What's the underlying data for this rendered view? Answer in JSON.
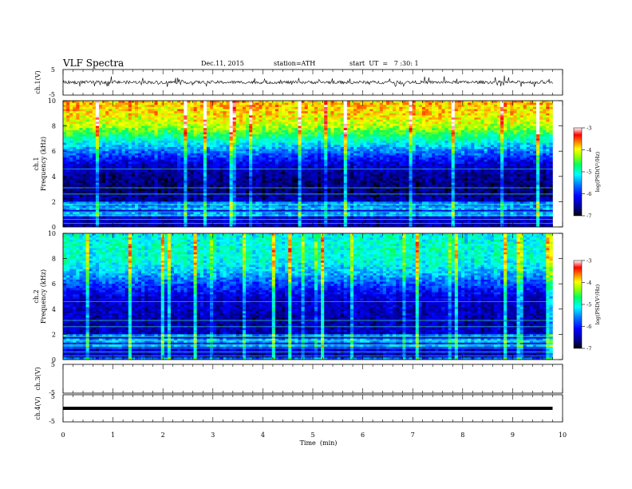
{
  "header": {
    "title": "VLF  Spectra",
    "date": "Dec.11, 2015",
    "station": "station=ATH",
    "start": "start  UT  =   7 :30: 1"
  },
  "chart_data": [
    {
      "type": "line",
      "panel": "ch1-waveform",
      "ylabel": "ch.1(V)",
      "ylim": [
        -5,
        5
      ],
      "yticks": [
        "5",
        "-5"
      ],
      "x_range_min": [
        0,
        10
      ],
      "baseline_V": 0,
      "description_series": "noisy waveform fluctuating around 0 V with spikes to about ±2 V"
    },
    {
      "type": "heatmap",
      "panel": "ch1-spectrogram",
      "ylabel": "ch.1\nFrequency  (kHz)",
      "ylabel_lines": [
        "ch.1",
        "Frequency  (kHz)"
      ],
      "ylim": [
        0,
        10
      ],
      "yticks": [
        "0",
        "2",
        "4",
        "6",
        "8",
        "10"
      ],
      "colorbar": {
        "label": "log(PSD(V²/Hz)",
        "range": [
          -7,
          -3
        ],
        "ticks": [
          "-3",
          "-4",
          "-5",
          "-6",
          "-7"
        ]
      },
      "profile_logPSD_by_kHz": [
        [
          0.0,
          -6.5
        ],
        [
          1.0,
          -6.3
        ],
        [
          2.0,
          -6.5
        ],
        [
          3.0,
          -6.7
        ],
        [
          4.0,
          -6.6
        ],
        [
          5.0,
          -6.3
        ],
        [
          6.0,
          -5.6
        ],
        [
          7.0,
          -4.9
        ],
        [
          8.0,
          -4.2
        ],
        [
          9.0,
          -3.9
        ],
        [
          10.0,
          -3.8
        ]
      ]
    },
    {
      "type": "heatmap",
      "panel": "ch2-spectrogram",
      "ylabel_lines": [
        "ch.2",
        "Frequency  (kHz)"
      ],
      "ylim": [
        0,
        10
      ],
      "yticks": [
        "0",
        "2",
        "4",
        "6",
        "8",
        "10"
      ],
      "colorbar": {
        "label": "log(PSD(V²/Hz)",
        "range": [
          -7,
          -3
        ],
        "ticks": [
          "-3",
          "-4",
          "-5",
          "-6",
          "-7"
        ]
      },
      "profile_logPSD_by_kHz": [
        [
          0.0,
          -6.6
        ],
        [
          1.0,
          -6.2
        ],
        [
          2.0,
          -6.4
        ],
        [
          3.0,
          -6.5
        ],
        [
          4.0,
          -6.4
        ],
        [
          5.0,
          -6.3
        ],
        [
          6.0,
          -5.8
        ],
        [
          7.0,
          -5.3
        ],
        [
          8.0,
          -5.0
        ],
        [
          9.0,
          -5.0
        ],
        [
          10.0,
          -5.1
        ]
      ]
    },
    {
      "type": "line",
      "panel": "ch3-waveform",
      "ylabel": "ch.3(V)",
      "ylim": [
        -5,
        5
      ],
      "yticks": [
        "5",
        "-5"
      ],
      "note": "no data"
    },
    {
      "type": "line",
      "panel": "ch4-waveform",
      "ylabel": "ch.4(V)",
      "ylim": [
        -5,
        5
      ],
      "yticks": [
        "5",
        "-5"
      ],
      "x": [
        0,
        9.8
      ],
      "values": [
        0,
        0
      ]
    }
  ],
  "xaxis": {
    "label": "Time  (min)",
    "range": [
      0,
      10
    ],
    "ticks": [
      "0",
      "1",
      "2",
      "3",
      "4",
      "5",
      "6",
      "7",
      "8",
      "9",
      "10"
    ],
    "data_end_min": 9.8
  },
  "colors": {
    "colormap": [
      "#000080",
      "#0000ff",
      "#0080ff",
      "#00ffff",
      "#00ff60",
      "#a0ff00",
      "#ffff00",
      "#ff8000",
      "#ff0000",
      "#ffffff"
    ]
  }
}
